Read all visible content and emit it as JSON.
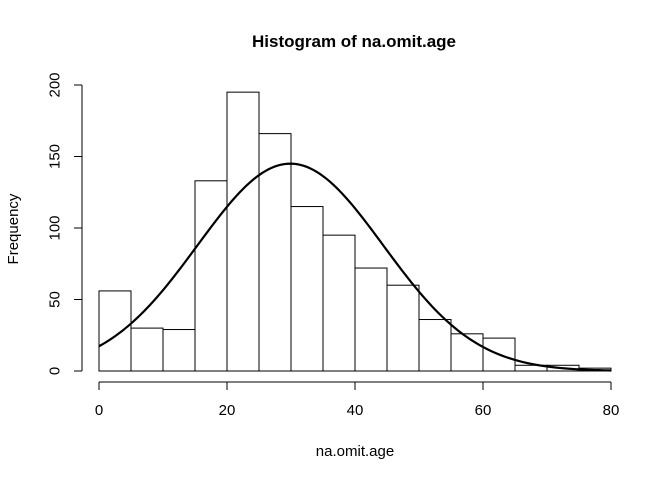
{
  "chart_data": {
    "type": "bar",
    "title": "Histogram of na.omit.age",
    "xlabel": "na.omit.age",
    "ylabel": "Frequency",
    "xlim": [
      0,
      80
    ],
    "ylim": [
      0,
      200
    ],
    "x_ticks": [
      0,
      20,
      40,
      60,
      80
    ],
    "y_ticks": [
      0,
      50,
      100,
      150,
      200
    ],
    "grid": false,
    "bins": {
      "edges": [
        0,
        5,
        10,
        15,
        20,
        25,
        30,
        35,
        40,
        45,
        50,
        55,
        60,
        65,
        70,
        75,
        80
      ],
      "counts": [
        56,
        30,
        29,
        133,
        195,
        166,
        115,
        95,
        72,
        60,
        36,
        26,
        23,
        4,
        4,
        2
      ]
    },
    "density_curve": {
      "distribution": "normal",
      "mean": 29.9,
      "sd": 14.5,
      "peak_frequency": 145
    },
    "colors": {
      "bar_fill": "#ffffff",
      "bar_stroke": "#000000",
      "curve": "#000000"
    }
  }
}
